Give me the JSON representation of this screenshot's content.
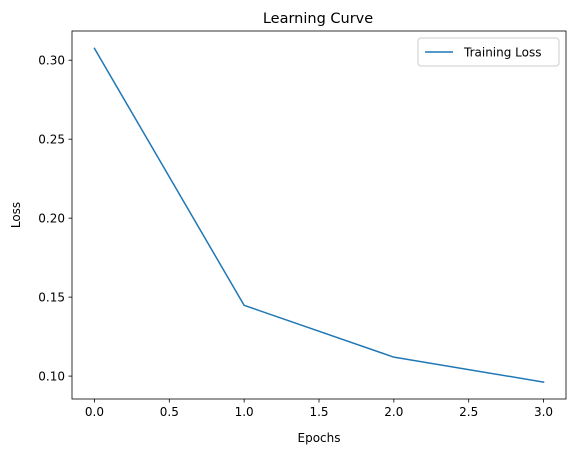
{
  "chart_data": {
    "type": "line",
    "title": "Learning Curve",
    "xlabel": "Epochs",
    "ylabel": "Loss",
    "xlim": [
      -0.15,
      3.15
    ],
    "ylim": [
      0.0855,
      0.3185
    ],
    "x_ticks": [
      "0.0",
      "0.5",
      "1.0",
      "1.5",
      "2.0",
      "2.5",
      "3.0"
    ],
    "y_ticks": [
      "0.10",
      "0.15",
      "0.20",
      "0.25",
      "0.30"
    ],
    "grid": false,
    "legend_position": "top-right",
    "series": [
      {
        "name": "Training Loss",
        "color": "#1f77b4",
        "x": [
          0,
          1,
          2,
          3
        ],
        "y": [
          0.3075,
          0.1448,
          0.112,
          0.0962
        ]
      }
    ]
  }
}
